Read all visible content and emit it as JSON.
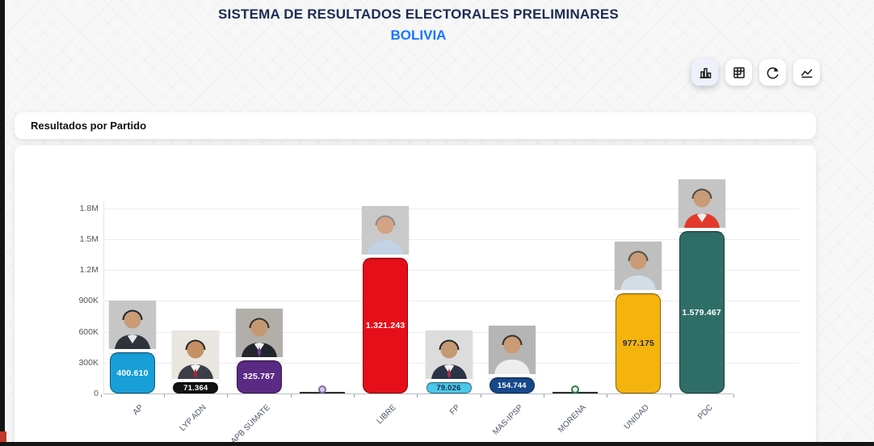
{
  "header": {
    "title": "SISTEMA DE RESULTADOS ELECTORALES PRELIMINARES",
    "subtitle": "BOLIVIA",
    "title_color": "#1d2b50",
    "subtitle_color": "#1677ff"
  },
  "toolbar": {
    "buttons": [
      {
        "icon": "bar-chart-icon",
        "active": true
      },
      {
        "icon": "table-icon",
        "active": false
      },
      {
        "icon": "pie-chart-icon",
        "active": false
      },
      {
        "icon": "area-chart-icon",
        "active": false
      }
    ]
  },
  "section": {
    "title": "Resultados por Partido"
  },
  "chart_data": {
    "type": "bar",
    "title": "Resultados por Partido",
    "categories": [
      "AP",
      "LYP ADN",
      "APB SÚMATE",
      "",
      "LIBRE",
      "FP",
      "MAS-IPSP",
      "MORENA",
      "UNIDAD",
      "PDC"
    ],
    "values": [
      400610,
      71364,
      325787,
      0,
      1321243,
      79026,
      154744,
      0,
      977175,
      1579467
    ],
    "value_labels": [
      "400.610",
      "71.364",
      "325.787",
      "",
      "1.321.243",
      "79.026",
      "154.744",
      "",
      "977.175",
      "1.579.467"
    ],
    "bar_colors": [
      "#189fd8",
      "#121212",
      "#5b2a84",
      "#333333",
      "#e60e19",
      "#4cc8e8",
      "#17498a",
      "#333333",
      "#f5b30d",
      "#2f6e67"
    ],
    "value_text_colors": [
      "#ffffff",
      "#ffffff",
      "#ffffff",
      "",
      "#ffffff",
      "#1b2a4e",
      "#ffffff",
      "",
      "#1b2a4e",
      "#ffffff"
    ],
    "markers": [
      null,
      null,
      null,
      {
        "fill": "#d8c9e8",
        "ring": "#7e6a98"
      },
      null,
      null,
      null,
      {
        "fill": "#eaf4ec",
        "ring": "#2e7d4f"
      },
      null,
      null
    ],
    "photos": [
      {
        "bg": "#c6c6c6",
        "hair": "#20242a",
        "skin": "#c99b76",
        "suit": "#30333c",
        "shirt": "#e8e8ea",
        "tie": ""
      },
      {
        "bg": "#e9e6e0",
        "hair": "#2a2623",
        "skin": "#c49064",
        "suit": "#3c3f48",
        "shirt": "#f5f5f5",
        "tie": "#b5242c"
      },
      {
        "bg": "#b2afaa",
        "hair": "#332e2c",
        "skin": "#c49972",
        "suit": "#23252c",
        "shirt": "#f0f0f0",
        "tie": "#6d3f96"
      },
      null,
      {
        "bg": "#c9c9c9",
        "hair": "#8a8a8c",
        "skin": "#d3a383",
        "suit": "#c3d2e4",
        "shirt": "",
        "tie": ""
      },
      {
        "bg": "#dcdcdc",
        "hair": "#23262c",
        "skin": "#c49972",
        "suit": "#2a3446",
        "shirt": "#f2f2f2",
        "tie": "#b03040"
      },
      {
        "bg": "#b5b5b5",
        "hair": "#383028",
        "skin": "#c99b76",
        "suit": "#ededed",
        "shirt": "",
        "tie": ""
      },
      null,
      {
        "bg": "#bfbfbf",
        "hair": "#55504b",
        "skin": "#c99b76",
        "suit": "#d3dde6",
        "shirt": "",
        "tie": ""
      },
      {
        "bg": "#c4c4c4",
        "hair": "#4f4a45",
        "skin": "#c99b76",
        "suit": "#e2392b",
        "shirt": "#f0f0f0",
        "tie": ""
      }
    ],
    "y_ticks": [
      "0",
      "300K",
      "600K",
      "900K",
      "1.2M",
      "1.5M",
      "1.8M"
    ],
    "ylim": [
      0,
      1800000
    ],
    "grid": true,
    "legend": "none"
  }
}
